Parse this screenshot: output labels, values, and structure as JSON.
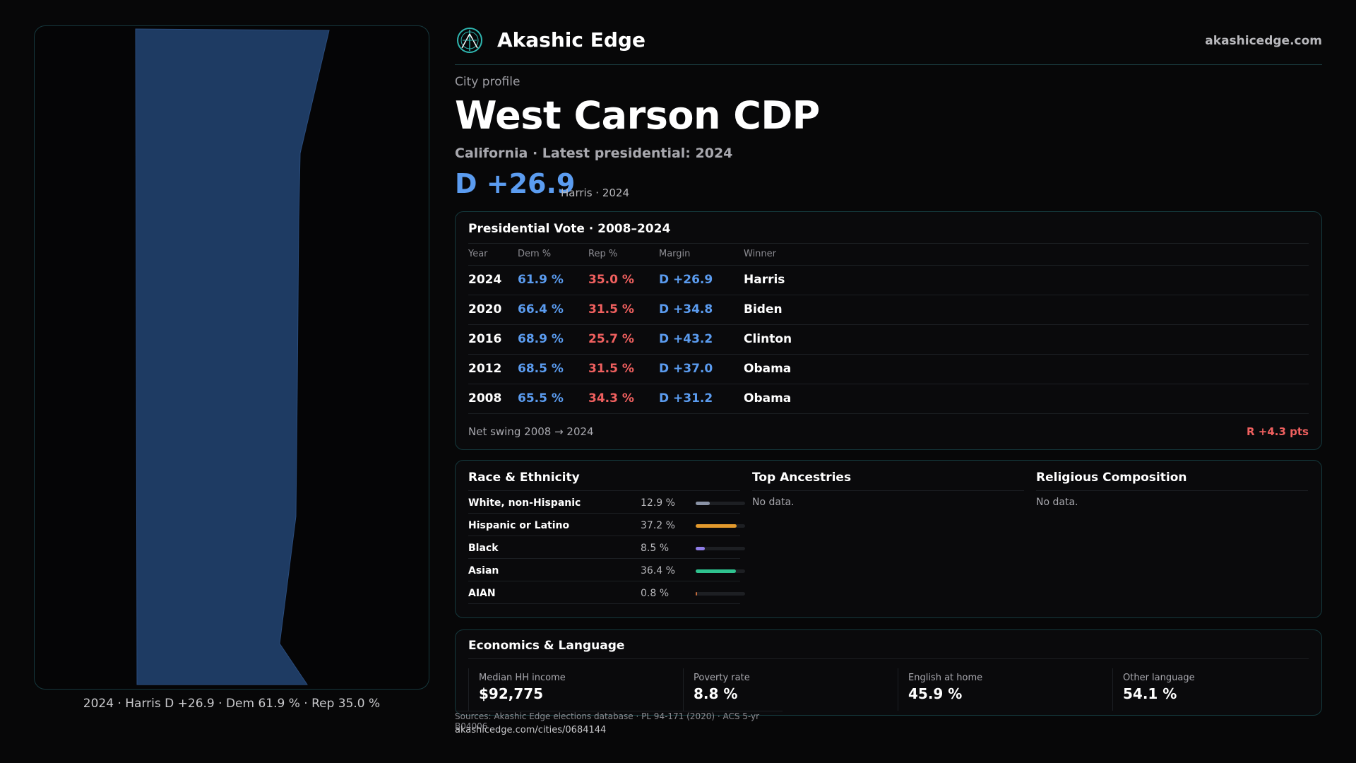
{
  "map": {
    "caption": "2024 · Harris D +26.9 · Dem 61.9 % · Rep 35.0 %",
    "fill_color": "#1e3b63"
  },
  "header": {
    "brand": "Akashic Edge",
    "site": "akashicedge.com",
    "logo_icon": "compass-emblem-icon"
  },
  "profile": {
    "kicker": "City profile",
    "title": "West Carson CDP",
    "subtitle": "California · Latest presidential: 2024",
    "margin": "D +26.9",
    "margin_note": "Harris · 2024"
  },
  "vote": {
    "title": "Presidential Vote · 2008–2024",
    "columns": {
      "year": "Year",
      "dem": "Dem %",
      "rep": "Rep %",
      "margin": "Margin",
      "winner": "Winner"
    },
    "rows": [
      {
        "year": "2024",
        "dem": "61.9 %",
        "rep": "35.0 %",
        "margin": "D +26.9",
        "winner": "Harris"
      },
      {
        "year": "2020",
        "dem": "66.4 %",
        "rep": "31.5 %",
        "margin": "D +34.8",
        "winner": "Biden"
      },
      {
        "year": "2016",
        "dem": "68.9 %",
        "rep": "25.7 %",
        "margin": "D +43.2",
        "winner": "Clinton"
      },
      {
        "year": "2012",
        "dem": "68.5 %",
        "rep": "31.5 %",
        "margin": "D +37.0",
        "winner": "Obama"
      },
      {
        "year": "2008",
        "dem": "65.5 %",
        "rep": "34.3 %",
        "margin": "D +31.2",
        "winner": "Obama"
      }
    ],
    "swing_label": "Net swing 2008 → 2024",
    "swing_value": "R +4.3 pts"
  },
  "race": {
    "title": "Race & Ethnicity",
    "rows": [
      {
        "name": "White, non-Hispanic",
        "pct": "12.9 %",
        "fraction": 0.129,
        "color": "#8a93a6"
      },
      {
        "name": "Hispanic or Latino",
        "pct": "37.2 %",
        "fraction": 0.372,
        "color": "#e39a2d"
      },
      {
        "name": "Black",
        "pct": "8.5 %",
        "fraction": 0.085,
        "color": "#8f7de8"
      },
      {
        "name": "Asian",
        "pct": "36.4 %",
        "fraction": 0.364,
        "color": "#2fc28f"
      },
      {
        "name": "AIAN",
        "pct": "0.8 %",
        "fraction": 0.008,
        "color": "#c46a3a"
      }
    ]
  },
  "ancestries": {
    "title": "Top Ancestries",
    "empty": "No data."
  },
  "religion": {
    "title": "Religious Composition",
    "empty": "No data."
  },
  "economics": {
    "title": "Economics & Language",
    "stats": [
      {
        "label": "Median HH income",
        "value": "$92,775"
      },
      {
        "label": "Poverty rate",
        "value": "8.8 %"
      },
      {
        "label": "English at home",
        "value": "45.9 %"
      },
      {
        "label": "Other language",
        "value": "54.1 %"
      }
    ]
  },
  "footer": {
    "sources": "Sources: Akashic Edge elections database · PL 94-171 (2020) · ACS 5-yr B04006",
    "url": "akashicedge.com/cities/0684144"
  }
}
